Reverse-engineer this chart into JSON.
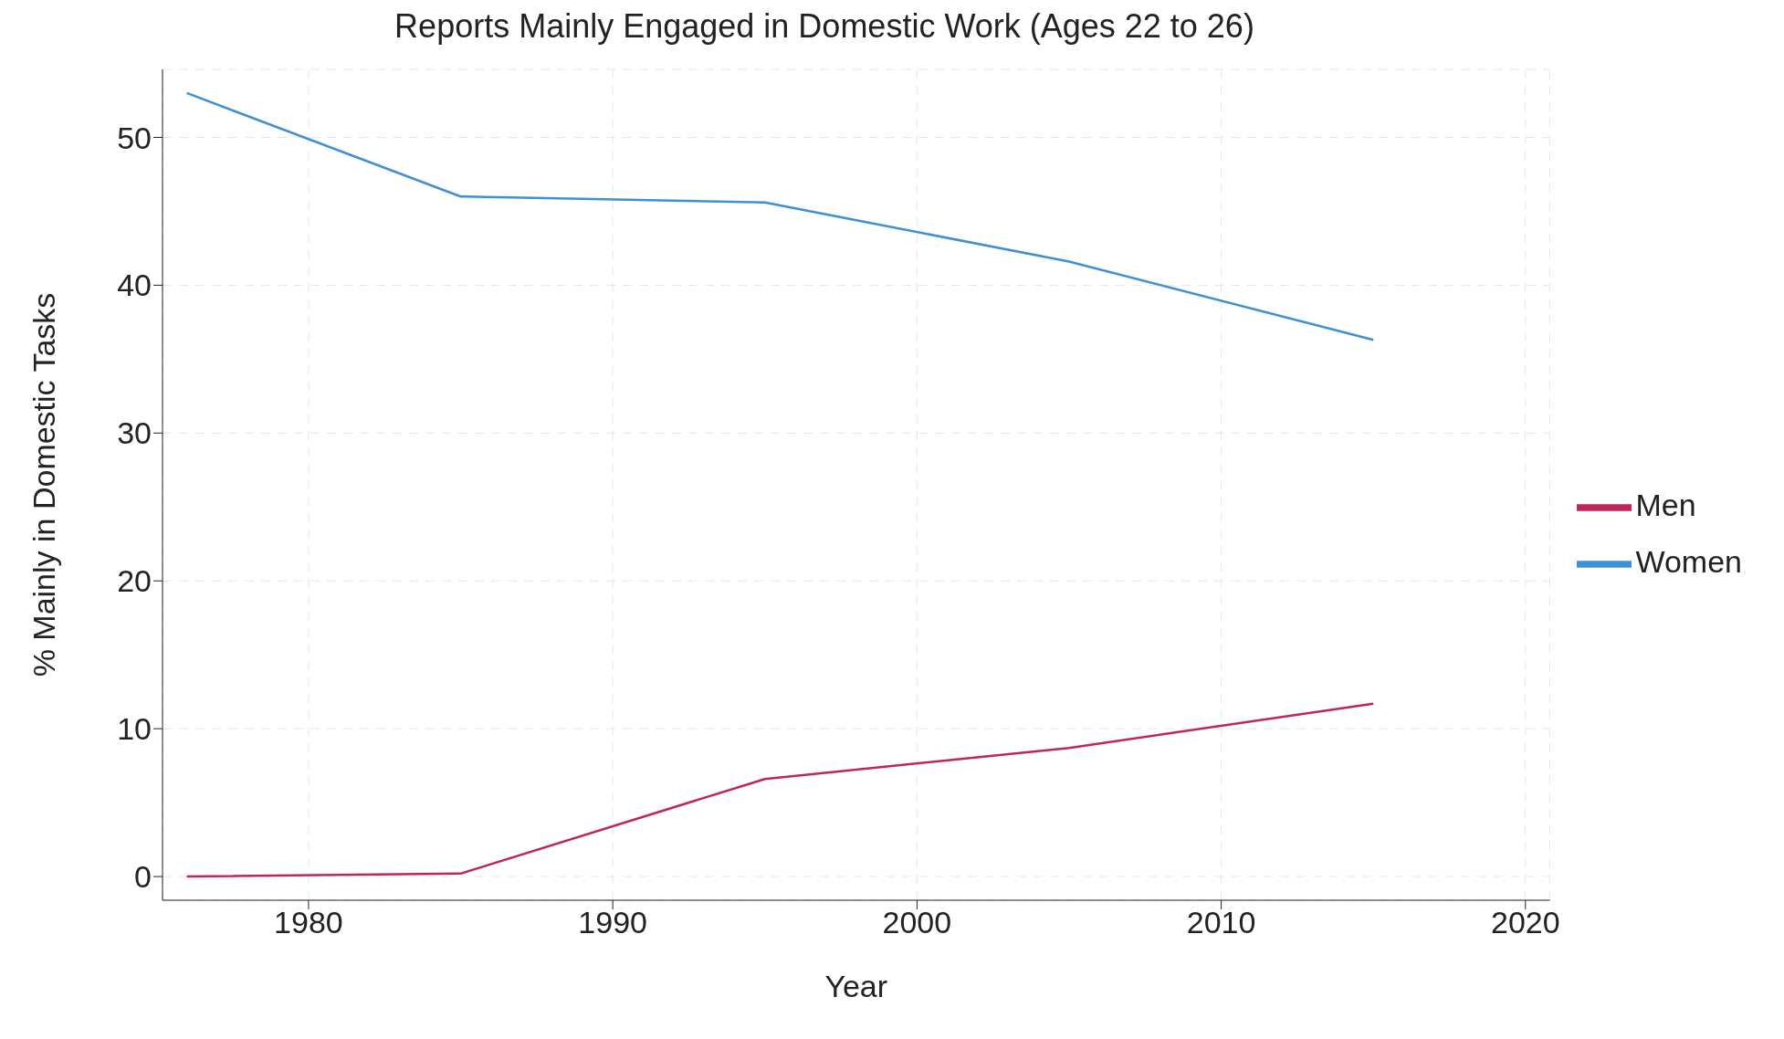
{
  "chart_data": {
    "type": "line",
    "title": "Reports Mainly Engaged in Domestic Work (Ages 22 to 26)",
    "xlabel": "Year",
    "ylabel": "% Mainly in Domestic Tasks",
    "x": [
      1976,
      1985,
      1995,
      2005,
      2015
    ],
    "series": [
      {
        "name": "Women",
        "color": "#3d8fd6",
        "values": [
          53.0,
          46.0,
          45.6,
          41.6,
          36.3
        ]
      },
      {
        "name": "Men",
        "color": "#c0245c",
        "values": [
          0,
          0.2,
          6.6,
          8.7,
          11.7
        ]
      }
    ],
    "xlim": [
      1975.2,
      2020.8
    ],
    "xticks": [
      1980,
      1990,
      2000,
      2010,
      2020
    ],
    "ylim": [
      -1.6,
      54.6
    ],
    "yticks": [
      0,
      10,
      20,
      30,
      40,
      50
    ],
    "grid": true,
    "legend": "right",
    "marker": "none",
    "line_style": "solid"
  }
}
